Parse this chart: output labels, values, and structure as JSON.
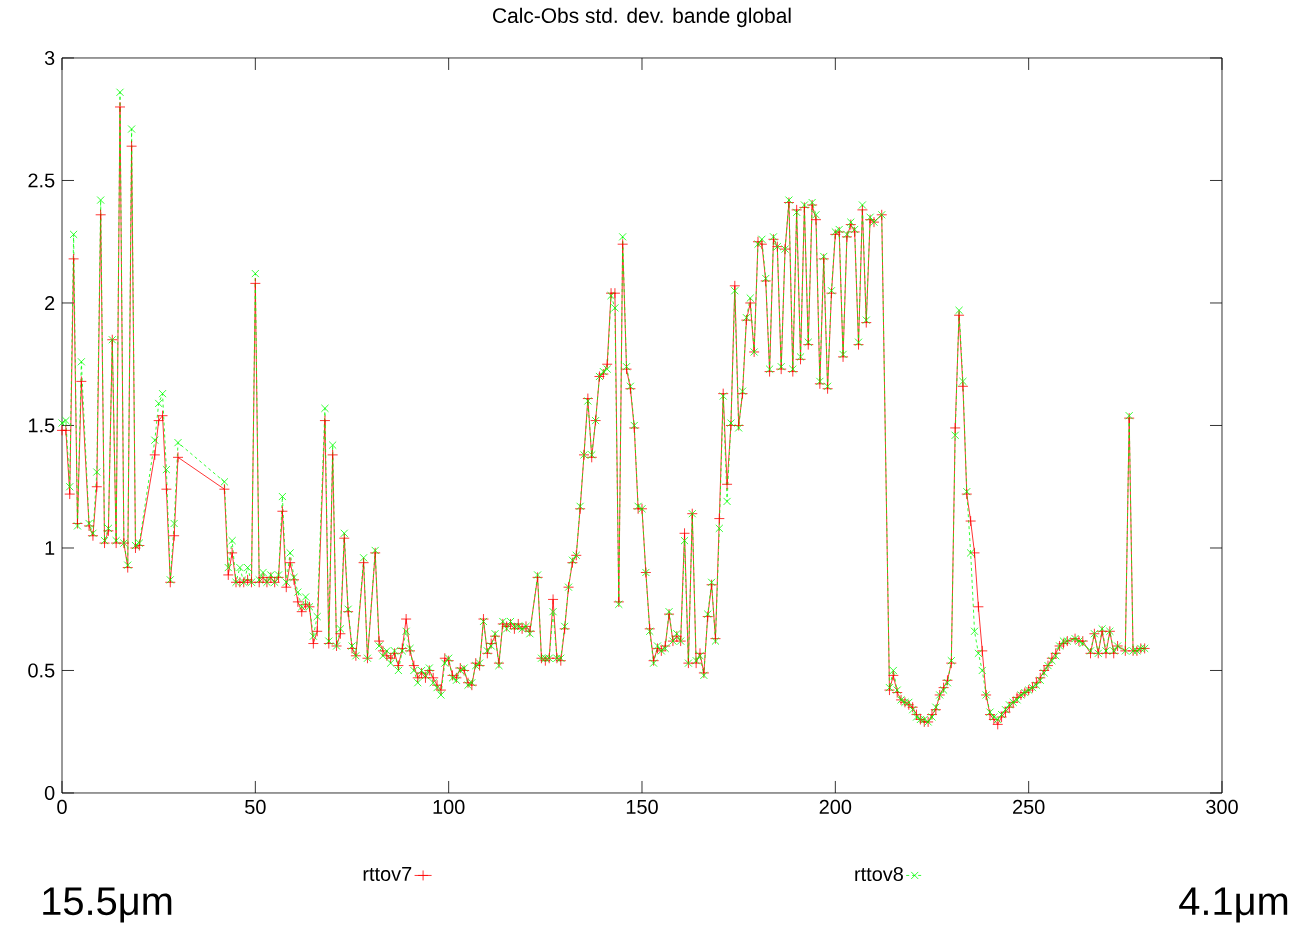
{
  "chart_data": {
    "type": "line",
    "title": "Calc-Obs std. dev. bande global",
    "annotations": [
      "15.5μm",
      "4.1μm"
    ],
    "x": [
      0,
      1,
      2,
      3,
      4,
      5,
      7,
      8,
      9,
      10,
      11,
      12,
      13,
      14,
      15,
      16,
      17,
      18,
      19,
      20,
      24,
      25,
      26,
      27,
      28,
      29,
      30,
      42,
      43,
      44,
      45,
      46,
      47,
      48,
      49,
      50,
      51,
      52,
      53,
      54,
      55,
      56,
      57,
      58,
      59,
      60,
      61,
      62,
      63,
      64,
      65,
      66,
      68,
      69,
      70,
      71,
      72,
      73,
      74,
      75,
      76,
      78,
      79,
      81,
      82,
      83,
      84,
      85,
      86,
      87,
      88,
      89,
      90,
      91,
      92,
      93,
      94,
      95,
      96,
      97,
      98,
      99,
      100,
      101,
      102,
      103,
      104,
      105,
      106,
      107,
      108,
      109,
      110,
      111,
      112,
      113,
      114,
      115,
      116,
      117,
      118,
      119,
      120,
      121,
      123,
      124,
      125,
      126,
      127,
      128,
      129,
      130,
      131,
      132,
      133,
      134,
      135,
      136,
      137,
      138,
      139,
      140,
      141,
      142,
      143,
      144,
      145,
      146,
      147,
      148,
      149,
      150,
      151,
      152,
      153,
      154,
      155,
      156,
      157,
      158,
      159,
      160,
      161,
      162,
      163,
      164,
      165,
      166,
      167,
      168,
      169,
      170,
      171,
      172,
      173,
      174,
      175,
      176,
      177,
      178,
      179,
      180,
      181,
      182,
      183,
      184,
      185,
      186,
      187,
      188,
      189,
      190,
      191,
      192,
      193,
      194,
      195,
      196,
      197,
      198,
      199,
      200,
      201,
      202,
      203,
      204,
      205,
      206,
      207,
      208,
      209,
      210,
      212,
      214,
      215,
      216,
      217,
      218,
      219,
      220,
      221,
      222,
      223,
      224,
      225,
      226,
      227,
      228,
      229,
      230,
      231,
      232,
      233,
      234,
      235,
      236,
      237,
      238,
      239,
      240,
      241,
      242,
      243,
      244,
      245,
      246,
      247,
      248,
      249,
      250,
      251,
      252,
      253,
      254,
      255,
      256,
      257,
      258,
      259,
      260,
      262,
      263,
      264,
      266,
      267,
      268,
      269,
      270,
      271,
      272,
      273,
      275,
      276,
      277,
      278,
      279,
      280
    ],
    "series": [
      {
        "name": "rttov7",
        "color": "#ff0000",
        "marker": "cross",
        "line_style": "solid",
        "values": [
          1.48,
          1.48,
          1.22,
          2.18,
          1.1,
          1.68,
          1.09,
          1.05,
          1.25,
          2.36,
          1.02,
          1.07,
          1.85,
          1.02,
          2.8,
          1.02,
          0.92,
          2.64,
          1.0,
          1.01,
          1.38,
          1.52,
          1.54,
          1.24,
          0.86,
          1.05,
          1.37,
          1.24,
          0.89,
          0.98,
          0.86,
          0.86,
          0.86,
          0.87,
          0.86,
          2.08,
          0.86,
          0.88,
          0.86,
          0.88,
          0.86,
          0.88,
          1.15,
          0.84,
          0.94,
          0.87,
          0.78,
          0.74,
          0.77,
          0.76,
          0.61,
          0.66,
          1.52,
          0.61,
          1.38,
          0.6,
          0.65,
          1.04,
          0.74,
          0.59,
          0.56,
          0.94,
          0.55,
          0.98,
          0.62,
          0.58,
          0.56,
          0.55,
          0.57,
          0.52,
          0.59,
          0.71,
          0.58,
          0.52,
          0.47,
          0.49,
          0.47,
          0.5,
          0.47,
          0.44,
          0.42,
          0.55,
          0.54,
          0.48,
          0.47,
          0.51,
          0.5,
          0.45,
          0.44,
          0.53,
          0.52,
          0.71,
          0.57,
          0.61,
          0.64,
          0.53,
          0.69,
          0.68,
          0.69,
          0.67,
          0.69,
          0.67,
          0.68,
          0.66,
          0.88,
          0.55,
          0.54,
          0.55,
          0.79,
          0.55,
          0.54,
          0.67,
          0.84,
          0.94,
          0.97,
          1.16,
          1.38,
          1.61,
          1.37,
          1.52,
          1.7,
          1.71,
          1.75,
          2.04,
          2.04,
          0.78,
          2.24,
          1.73,
          1.65,
          1.49,
          1.16,
          1.16,
          0.9,
          0.67,
          0.54,
          0.59,
          0.58,
          0.6,
          0.73,
          0.62,
          0.64,
          0.62,
          1.06,
          0.53,
          1.14,
          0.53,
          0.57,
          0.49,
          0.72,
          0.85,
          0.63,
          1.12,
          1.63,
          1.26,
          1.5,
          2.07,
          1.5,
          1.63,
          1.93,
          2.0,
          1.8,
          2.25,
          2.24,
          2.09,
          1.72,
          2.26,
          2.23,
          1.73,
          2.22,
          2.41,
          1.72,
          2.38,
          1.77,
          2.39,
          1.83,
          2.4,
          2.34,
          1.67,
          2.18,
          1.65,
          2.04,
          2.28,
          2.29,
          1.78,
          2.27,
          2.32,
          2.29,
          1.83,
          2.38,
          1.92,
          2.34,
          2.33,
          2.36,
          0.42,
          0.48,
          0.41,
          0.38,
          0.37,
          0.36,
          0.35,
          0.32,
          0.3,
          0.29,
          0.29,
          0.32,
          0.34,
          0.4,
          0.43,
          0.46,
          0.53,
          1.49,
          1.95,
          1.66,
          1.22,
          1.11,
          0.98,
          0.76,
          0.58,
          0.4,
          0.32,
          0.3,
          0.28,
          0.31,
          0.33,
          0.35,
          0.37,
          0.39,
          0.4,
          0.41,
          0.42,
          0.43,
          0.45,
          0.47,
          0.5,
          0.52,
          0.55,
          0.57,
          0.6,
          0.61,
          0.62,
          0.63,
          0.62,
          0.62,
          0.57,
          0.65,
          0.57,
          0.66,
          0.57,
          0.66,
          0.57,
          0.6,
          0.58,
          1.53,
          0.58,
          0.58,
          0.59,
          0.59
        ]
      },
      {
        "name": "rttov8",
        "color": "#00ff00",
        "marker": "cross",
        "line_style": "dashed",
        "values": [
          1.51,
          1.52,
          1.25,
          2.28,
          1.09,
          1.76,
          1.1,
          1.06,
          1.31,
          2.42,
          1.03,
          1.08,
          1.85,
          1.03,
          2.86,
          1.02,
          0.93,
          2.71,
          1.01,
          1.02,
          1.44,
          1.59,
          1.63,
          1.32,
          0.87,
          1.1,
          1.43,
          1.27,
          0.92,
          1.03,
          0.86,
          0.92,
          0.86,
          0.92,
          0.86,
          2.12,
          0.87,
          0.9,
          0.86,
          0.89,
          0.86,
          0.89,
          1.21,
          0.86,
          0.98,
          0.88,
          0.82,
          0.76,
          0.8,
          0.76,
          0.64,
          0.72,
          1.57,
          0.62,
          1.42,
          0.6,
          0.67,
          1.06,
          0.75,
          0.6,
          0.56,
          0.96,
          0.55,
          0.99,
          0.6,
          0.56,
          0.58,
          0.53,
          0.58,
          0.5,
          0.58,
          0.66,
          0.59,
          0.5,
          0.45,
          0.5,
          0.48,
          0.51,
          0.45,
          0.43,
          0.4,
          0.53,
          0.55,
          0.47,
          0.46,
          0.5,
          0.51,
          0.44,
          0.45,
          0.52,
          0.53,
          0.7,
          0.58,
          0.6,
          0.65,
          0.52,
          0.7,
          0.67,
          0.7,
          0.68,
          0.68,
          0.67,
          0.68,
          0.65,
          0.89,
          0.55,
          0.55,
          0.55,
          0.74,
          0.55,
          0.55,
          0.68,
          0.84,
          0.95,
          0.97,
          1.17,
          1.38,
          1.6,
          1.38,
          1.52,
          1.7,
          1.72,
          1.73,
          2.03,
          1.98,
          0.77,
          2.27,
          1.74,
          1.66,
          1.5,
          1.17,
          1.16,
          0.9,
          0.66,
          0.53,
          0.6,
          0.58,
          0.59,
          0.74,
          0.62,
          0.65,
          0.62,
          1.03,
          0.53,
          1.14,
          0.54,
          0.56,
          0.48,
          0.73,
          0.86,
          0.62,
          1.08,
          1.62,
          1.19,
          1.51,
          2.05,
          1.49,
          1.64,
          1.94,
          2.02,
          1.8,
          2.24,
          2.26,
          2.1,
          1.73,
          2.27,
          2.23,
          1.74,
          2.22,
          2.42,
          1.73,
          2.37,
          1.78,
          2.4,
          1.84,
          2.41,
          2.36,
          1.68,
          2.19,
          1.66,
          2.05,
          2.29,
          2.3,
          1.79,
          2.28,
          2.33,
          2.3,
          1.84,
          2.4,
          1.93,
          2.35,
          2.33,
          2.36,
          0.43,
          0.5,
          0.42,
          0.38,
          0.37,
          0.37,
          0.34,
          0.31,
          0.3,
          0.3,
          0.29,
          0.31,
          0.35,
          0.4,
          0.42,
          0.45,
          0.54,
          1.46,
          1.97,
          1.68,
          1.23,
          0.98,
          0.66,
          0.57,
          0.5,
          0.4,
          0.33,
          0.31,
          0.3,
          0.32,
          0.34,
          0.36,
          0.37,
          0.38,
          0.4,
          0.41,
          0.42,
          0.43,
          0.44,
          0.46,
          0.49,
          0.52,
          0.54,
          0.56,
          0.6,
          0.62,
          0.62,
          0.63,
          0.62,
          0.61,
          0.58,
          0.65,
          0.57,
          0.67,
          0.58,
          0.66,
          0.58,
          0.6,
          0.58,
          1.54,
          0.58,
          0.58,
          0.59,
          0.59
        ]
      }
    ],
    "xlim": [
      0,
      300
    ],
    "ylim": [
      0,
      3
    ],
    "xticks": [
      0,
      50,
      100,
      150,
      200,
      250,
      300
    ],
    "yticks": [
      0,
      0.5,
      1,
      1.5,
      2,
      2.5,
      3
    ],
    "grid": false,
    "legend": "bottom"
  }
}
